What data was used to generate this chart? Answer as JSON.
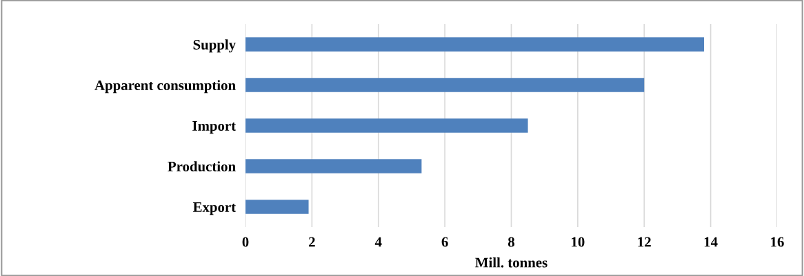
{
  "chart_data": {
    "type": "bar",
    "orientation": "horizontal",
    "xlabel": "Mill. tonnes",
    "categories": [
      "Supply",
      "Apparent consumption",
      "Import",
      "Production",
      "Export"
    ],
    "values": [
      13.8,
      12.0,
      8.5,
      5.3,
      1.9
    ],
    "color": "#4f81bd",
    "xlim": [
      0,
      16
    ],
    "xticks": [
      0,
      2,
      4,
      6,
      8,
      10,
      12,
      14,
      16
    ],
    "grid": "x"
  }
}
